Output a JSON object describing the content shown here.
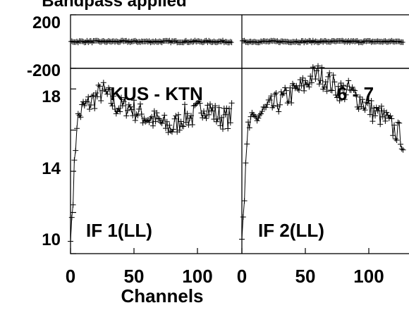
{
  "chart_data": {
    "type": "line",
    "title": "Bandpass applied",
    "xlabel": "Channels",
    "baseline_label": "KUS - KTN",
    "baseline_suffix": "6 - 7",
    "phase_panel": {
      "ylim": [
        -200,
        200
      ],
      "tick_labels": [
        "200",
        "-200"
      ],
      "phase_level": 0
    },
    "amplitude_panel": {
      "ylim": [
        10,
        19
      ],
      "tick_labels": [
        "18",
        "14",
        "10"
      ]
    },
    "x_ticks": [
      "0",
      "50",
      "100"
    ],
    "panels": [
      {
        "label": "IF 1(LL)",
        "channels": [
          0,
          5,
          10,
          15,
          20,
          25,
          30,
          35,
          40,
          45,
          50,
          55,
          60,
          65,
          70,
          75,
          80,
          85,
          90,
          95,
          100,
          105,
          110,
          115,
          120,
          125,
          127
        ],
        "amplitude": [
          10.6,
          16.4,
          17.1,
          17.3,
          17.6,
          17.9,
          17.6,
          17.2,
          17.1,
          17.2,
          17.0,
          16.8,
          16.6,
          16.5,
          16.4,
          16.2,
          16.1,
          16.4,
          16.7,
          16.6,
          16.9,
          17.2,
          17.0,
          16.7,
          16.6,
          16.6,
          16.8
        ]
      },
      {
        "label": "IF 2(LL)",
        "channels": [
          0,
          5,
          10,
          15,
          20,
          25,
          30,
          35,
          40,
          45,
          50,
          55,
          60,
          65,
          70,
          75,
          80,
          85,
          90,
          95,
          100,
          105,
          110,
          115,
          120,
          125,
          127
        ],
        "amplitude": [
          10.7,
          16.1,
          16.5,
          16.8,
          17.0,
          17.2,
          17.4,
          17.6,
          17.8,
          18.0,
          18.2,
          18.6,
          18.7,
          18.5,
          18.3,
          18.0,
          17.9,
          17.9,
          17.6,
          17.4,
          17.1,
          16.8,
          16.7,
          16.4,
          16.0,
          15.8,
          15.3
        ]
      }
    ]
  }
}
